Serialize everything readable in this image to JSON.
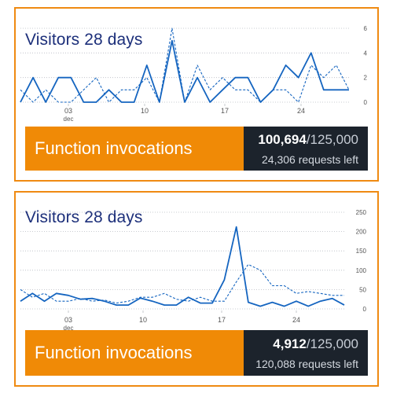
{
  "widgets": [
    {
      "title": "Visitors 28 days",
      "footer_label": "Function invocations",
      "used": "100,694",
      "total": "/125,000",
      "remaining": "24,306 requests left",
      "colors": {
        "border": "#ef8a12",
        "footer_bg": "#f08a06",
        "quota_bg": "#1c232c",
        "line": "#1565c0"
      }
    },
    {
      "title": "Visitors 28 days",
      "footer_label": "Function invocations",
      "used": "4,912",
      "total": "/125,000",
      "remaining": "120,088 requests left",
      "colors": {
        "border": "#ef8a12",
        "footer_bg": "#f08a06",
        "quota_bg": "#1c232c",
        "line": "#1565c0"
      }
    }
  ],
  "chart_data": [
    {
      "type": "line",
      "x_ticks": [
        "03",
        "10",
        "17",
        "24"
      ],
      "x_sublabel": "dec",
      "y_ticks": [
        0,
        2,
        4,
        6
      ],
      "ylim": [
        0,
        6
      ],
      "series": [
        {
          "style": "solid",
          "values": [
            0,
            2,
            0,
            2,
            2,
            0,
            0,
            1,
            0,
            0,
            3,
            0,
            5,
            0,
            2,
            0,
            1,
            2,
            2,
            0,
            1,
            3,
            2,
            4,
            1,
            1,
            1
          ]
        },
        {
          "style": "dashed",
          "values": [
            1,
            0,
            1,
            0,
            0,
            1,
            2,
            0,
            1,
            1,
            2,
            0,
            6,
            0,
            3,
            1,
            2,
            1,
            1,
            0,
            1,
            1,
            0,
            3,
            2,
            3,
            1
          ]
        }
      ]
    },
    {
      "type": "line",
      "x_ticks": [
        "03",
        "10",
        "17",
        "24"
      ],
      "x_sublabel": "dec",
      "y_ticks": [
        0,
        50,
        100,
        150,
        200,
        250
      ],
      "ylim": [
        0,
        250
      ],
      "series": [
        {
          "style": "solid",
          "values": [
            20,
            40,
            20,
            40,
            35,
            25,
            27,
            20,
            10,
            10,
            28,
            20,
            10,
            10,
            30,
            15,
            15,
            75,
            212,
            17,
            7,
            17,
            7,
            20,
            7,
            20,
            27,
            10
          ]
        },
        {
          "style": "dashed",
          "values": [
            50,
            30,
            40,
            20,
            20,
            27,
            20,
            23,
            15,
            20,
            30,
            30,
            40,
            25,
            20,
            30,
            20,
            20,
            70,
            115,
            100,
            60,
            60,
            40,
            45,
            40,
            35,
            35
          ]
        }
      ]
    }
  ]
}
